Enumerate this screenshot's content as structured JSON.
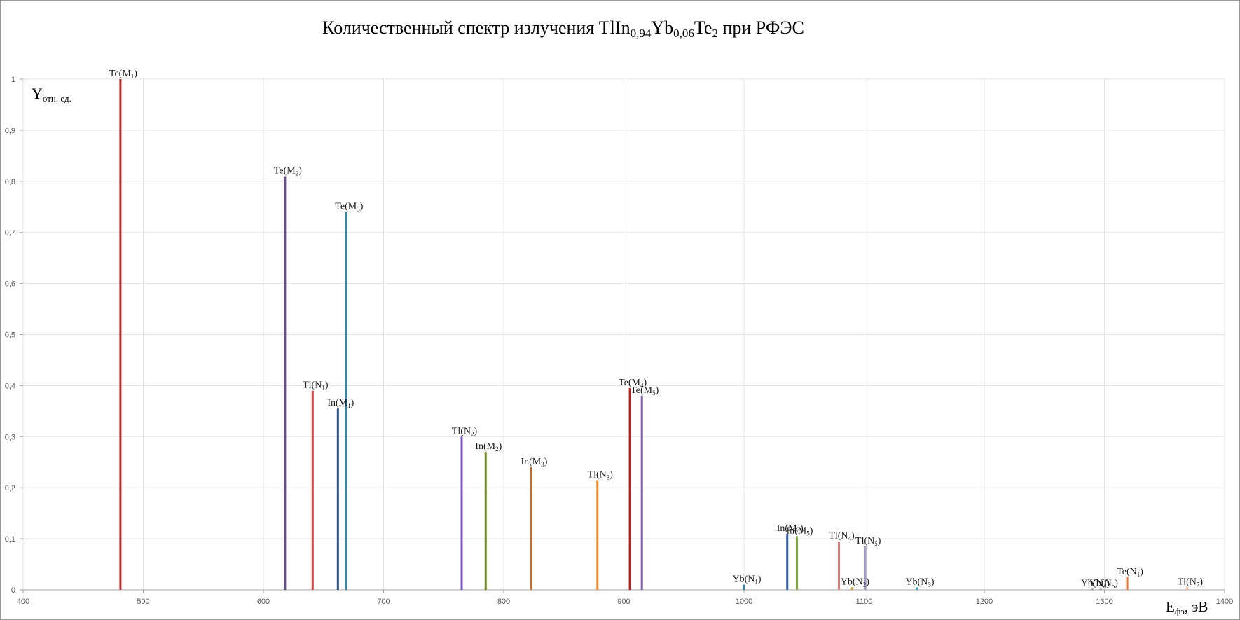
{
  "chart_data": {
    "type": "bar",
    "title": {
      "prefix": "Количественный спектр излучения TlIn",
      "sub1": "0,94",
      "mid1": "Yb",
      "sub2": "0,06",
      "mid2": "Te",
      "sub3": "2",
      "suffix": " при  РФЭС"
    },
    "ylabel": {
      "main": "Y",
      "sub": "отн. ед."
    },
    "xlabel": {
      "main": "E",
      "sub": "фэ",
      "suffix": ", эВ"
    },
    "xlim": [
      400,
      1400
    ],
    "ylim": [
      0,
      1
    ],
    "x_ticks": [
      "400",
      "500",
      "600",
      "700",
      "800",
      "900",
      "1000",
      "1100",
      "1200",
      "1300",
      "1400"
    ],
    "y_ticks": [
      "0",
      "0,1",
      "0,2",
      "0,3",
      "0,4",
      "0,5",
      "0,6",
      "0,7",
      "0,8",
      "0,9",
      "1"
    ],
    "grid": true,
    "peaks": [
      {
        "element": "Te",
        "level": "M",
        "index": "1",
        "x": 481,
        "y": 1.0,
        "color": "#b8312f"
      },
      {
        "element": "Te",
        "level": "M",
        "index": "2",
        "x": 618,
        "y": 0.81,
        "color": "#6a4a8c"
      },
      {
        "element": "Tl",
        "level": "N",
        "index": "1",
        "x": 641,
        "y": 0.39,
        "color": "#d04848"
      },
      {
        "element": "In",
        "level": "M",
        "index": "1",
        "x": 662,
        "y": 0.355,
        "color": "#2f4f8a"
      },
      {
        "element": "Te",
        "level": "M",
        "index": "3",
        "x": 669,
        "y": 0.74,
        "color": "#2e86b0"
      },
      {
        "element": "Tl",
        "level": "N",
        "index": "2",
        "x": 765,
        "y": 0.3,
        "color": "#7e57c2"
      },
      {
        "element": "In",
        "level": "M",
        "index": "2",
        "x": 785,
        "y": 0.27,
        "color": "#6b8e23"
      },
      {
        "element": "In",
        "level": "M",
        "index": "3",
        "x": 823,
        "y": 0.24,
        "color": "#d2691e"
      },
      {
        "element": "Tl",
        "level": "N",
        "index": "3",
        "x": 878,
        "y": 0.215,
        "color": "#f28c28"
      },
      {
        "element": "Te",
        "level": "M",
        "index": "4",
        "x": 905,
        "y": 0.395,
        "color": "#b22222"
      },
      {
        "element": "Te",
        "level": "M",
        "index": "5",
        "x": 915,
        "y": 0.38,
        "color": "#7a5aa6"
      },
      {
        "element": "Yb",
        "level": "N",
        "index": "1",
        "x": 1000,
        "y": 0.01,
        "color": "#2e86b0"
      },
      {
        "element": "In",
        "level": "M",
        "index": "4",
        "x": 1036,
        "y": 0.11,
        "color": "#2e5ea8"
      },
      {
        "element": "In",
        "level": "M",
        "index": "5",
        "x": 1044,
        "y": 0.105,
        "color": "#7ba337"
      },
      {
        "element": "Tl",
        "level": "N",
        "index": "4",
        "x": 1079,
        "y": 0.095,
        "color": "#e07b7b"
      },
      {
        "element": "Yb",
        "level": "N",
        "index": "2",
        "x": 1090,
        "y": 0.005,
        "color": "#c9a227"
      },
      {
        "element": "Tl",
        "level": "N",
        "index": "5",
        "x": 1101,
        "y": 0.085,
        "color": "#a89cc8"
      },
      {
        "element": "Yb",
        "level": "N",
        "index": "3",
        "x": 1144,
        "y": 0.005,
        "color": "#3aa0c8"
      },
      {
        "element": "Yb",
        "level": "N",
        "index": "4",
        "x": 1290,
        "y": 0.002,
        "color": "#8a8a8a"
      },
      {
        "element": "Yb",
        "level": "N",
        "index": "5",
        "x": 1297,
        "y": 0.002,
        "color": "#8a8a8a"
      },
      {
        "element": "Te",
        "level": "N",
        "index": "1",
        "x": 1319,
        "y": 0.025,
        "color": "#e8742a"
      },
      {
        "element": "Tl",
        "level": "N",
        "index": "7",
        "x": 1369,
        "y": 0.005,
        "color": "#f5b183"
      }
    ]
  }
}
